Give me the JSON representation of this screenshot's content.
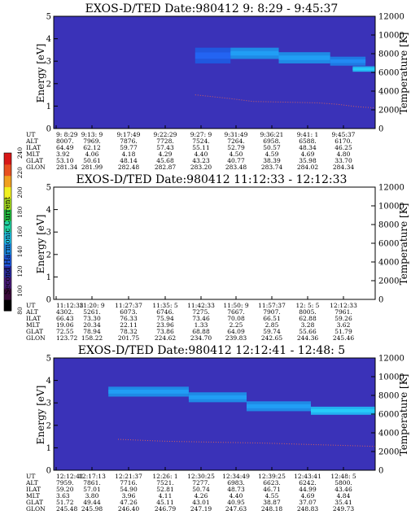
{
  "chart_data": [
    {
      "type": "heatmap",
      "title": "EXOS-D/TED   Date:980412   9: 8:29 - 9:45:37",
      "ylabel": "Energy [eV]",
      "y2label": "Temperature [K]",
      "ylim": [
        0,
        5
      ],
      "y2lim": [
        0,
        12000
      ],
      "yticks": [
        "0",
        "1",
        "2",
        "3",
        "4",
        "5"
      ],
      "y2ticks": [
        "0",
        "2000",
        "4000",
        "6000",
        "8000",
        "10000",
        "12000"
      ],
      "background_color": "#3a32b8",
      "bands": [
        {
          "x0": 0.44,
          "x1": 0.55,
          "center": 3.25,
          "half": 0.35,
          "color": "#1f5be0"
        },
        {
          "x0": 0.55,
          "x1": 0.7,
          "center": 3.35,
          "half": 0.25,
          "color": "#1d8fe8"
        },
        {
          "x0": 0.7,
          "x1": 0.86,
          "center": 3.15,
          "half": 0.25,
          "color": "#1d8fe8"
        },
        {
          "x0": 0.86,
          "x1": 0.97,
          "center": 3.0,
          "half": 0.2,
          "color": "#1e7de6"
        },
        {
          "x0": 0.93,
          "x1": 1.0,
          "center": 2.65,
          "half": 0.12,
          "color": "#22b8f2"
        }
      ],
      "temperature": [
        [
          0.44,
          3600
        ],
        [
          0.55,
          3200
        ],
        [
          0.62,
          2900
        ],
        [
          0.68,
          2850
        ],
        [
          0.75,
          2800
        ],
        [
          0.82,
          2750
        ],
        [
          0.88,
          2600
        ],
        [
          0.94,
          2350
        ],
        [
          1.0,
          2200
        ]
      ],
      "table": {
        "labels": [
          "UT",
          "ALT",
          "ILAT",
          "MLT",
          "GLAT",
          "GLON"
        ],
        "columns": [
          [
            "9: 8:29",
            "8007.",
            "64.49",
            "3.92",
            "53.10",
            "281.34"
          ],
          [
            "9:13: 9",
            "7969.",
            "62.12",
            "4.06",
            "50.61",
            "281.99"
          ],
          [
            "9:17:49",
            "7876.",
            "59.77",
            "4.18",
            "48.14",
            "282.48"
          ],
          [
            "9:22:29",
            "7728.",
            "57.43",
            "4.29",
            "45.68",
            "282.87"
          ],
          [
            "9:27: 9",
            "7524.",
            "55.11",
            "4.40",
            "43.23",
            "283.20"
          ],
          [
            "9:31:49",
            "7264.",
            "52.79",
            "4.50",
            "40.77",
            "283.48"
          ],
          [
            "9:36:21",
            "6958.",
            "50.57",
            "4.59",
            "38.39",
            "283.74"
          ],
          [
            "9:41: 1",
            "6588.",
            "48.34",
            "4.69",
            "35.98",
            "284.02"
          ],
          [
            "9:45:37",
            "6170.",
            "46.25",
            "4.80",
            "33.70",
            "284.34"
          ]
        ]
      }
    },
    {
      "type": "heatmap",
      "title": "EXOS-D/TED   Date:980412   11:12:33 - 12:12:33",
      "ylabel": "Energy [eV]",
      "y2label": "Temperature [K]",
      "ylim": [
        0,
        5
      ],
      "y2lim": [
        0,
        12000
      ],
      "yticks": [
        "0",
        "1",
        "2",
        "3",
        "4",
        "5"
      ],
      "y2ticks": [
        "0",
        "2000",
        "4000",
        "6000",
        "8000",
        "10000",
        "12000"
      ],
      "background_color": "#ffffff",
      "bands": [],
      "temperature": [],
      "table": {
        "labels": [
          "UT",
          "ALT",
          "ILAT",
          "MLT",
          "GLAT",
          "GLON"
        ],
        "columns": [
          [
            "11:12:33",
            "4302.",
            "66.43",
            "19.06",
            "72.55",
            "123.72"
          ],
          [
            "11:20: 9",
            "5261.",
            "73.30",
            "20.34",
            "78.94",
            "158.22"
          ],
          [
            "11:27:37",
            "6073.",
            "76.33",
            "22.11",
            "78.32",
            "201.75"
          ],
          [
            "11:35: 5",
            "6746.",
            "75.94",
            "23.96",
            "73.86",
            "224.62"
          ],
          [
            "11:42:33",
            "7275.",
            "73.46",
            "1.33",
            "68.88",
            "234.70"
          ],
          [
            "11:50: 9",
            "7667.",
            "70.08",
            "2.25",
            "64.09",
            "239.83"
          ],
          [
            "11:57:37",
            "7907.",
            "66.51",
            "2.85",
            "59.74",
            "242.65"
          ],
          [
            "12: 5: 5",
            "8005.",
            "62.88",
            "3.28",
            "55.66",
            "244.36"
          ],
          [
            "12:12:33",
            "7961.",
            "59.26",
            "3.62",
            "51.79",
            "245.46"
          ]
        ]
      }
    },
    {
      "type": "heatmap",
      "title": "EXOS-D/TED   Date:980412   12:12:41 - 12:48: 5",
      "ylabel": "Energy [eV]",
      "y2label": "Temperature [K]",
      "ylim": [
        0,
        5
      ],
      "y2lim": [
        0,
        12000
      ],
      "yticks": [
        "0",
        "1",
        "2",
        "3",
        "4",
        "5"
      ],
      "y2ticks": [
        "0",
        "2000",
        "4000",
        "6000",
        "8000",
        "10000",
        "12000"
      ],
      "background_color": "#3a32b8",
      "bands": [
        {
          "x0": 0.17,
          "x1": 0.42,
          "center": 3.5,
          "half": 0.22,
          "color": "#1d8fe8"
        },
        {
          "x0": 0.42,
          "x1": 0.6,
          "center": 3.25,
          "half": 0.22,
          "color": "#1d8fe8"
        },
        {
          "x0": 0.6,
          "x1": 0.8,
          "center": 2.85,
          "half": 0.22,
          "color": "#1d8fe8"
        },
        {
          "x0": 0.8,
          "x1": 1.0,
          "center": 2.65,
          "half": 0.18,
          "color": "#22b8f2"
        }
      ],
      "temperature": [
        [
          0.2,
          3300
        ],
        [
          0.35,
          3100
        ],
        [
          0.5,
          3000
        ],
        [
          0.65,
          2900
        ],
        [
          0.8,
          2750
        ],
        [
          0.9,
          2650
        ],
        [
          1.0,
          2550
        ]
      ],
      "table": {
        "labels": [
          "UT",
          "ALT",
          "ILAT",
          "MLT",
          "GLAT",
          "GLON"
        ],
        "columns": [
          [
            "12:12:41",
            "7959.",
            "59.20",
            "3.63",
            "51.72",
            "245.48"
          ],
          [
            "12:17:13",
            "7861.",
            "57.01",
            "3.80",
            "49.44",
            "245.98"
          ],
          [
            "12:21:37",
            "7716.",
            "54.90",
            "3.96",
            "47.26",
            "246.40"
          ],
          [
            "12:26: 1",
            "7521.",
            "52.81",
            "4.11",
            "45.11",
            "246.79"
          ],
          [
            "12:30:25",
            "7277.",
            "50.74",
            "4.26",
            "43.01",
            "247.19"
          ],
          [
            "12:34:49",
            "6983.",
            "48.73",
            "4.40",
            "40.95",
            "247.63"
          ],
          [
            "12:39:25",
            "6623.",
            "46.71",
            "4.55",
            "38.87",
            "248.18"
          ],
          [
            "12:43:41",
            "6242.",
            "44.99",
            "4.69",
            "37.07",
            "248.83"
          ],
          [
            "12:48: 5",
            "5800.",
            "43.46",
            "4.84",
            "35.41",
            "249.73"
          ]
        ]
      }
    }
  ],
  "colorbar": {
    "title": "Second Harmonic Current",
    "range": [
      80,
      240
    ],
    "tick_labels": [
      "80",
      "100",
      "120",
      "140",
      "160",
      "180",
      "200",
      "220",
      "240"
    ],
    "colors": [
      "#000000",
      "#3a0a3a",
      "#4a1a7a",
      "#2a2aa0",
      "#1f5be0",
      "#1d8fe8",
      "#22c5e8",
      "#20d0a0",
      "#22c040",
      "#a8e020",
      "#f0f020",
      "#f0a020",
      "#e85020",
      "#d81818"
    ]
  }
}
